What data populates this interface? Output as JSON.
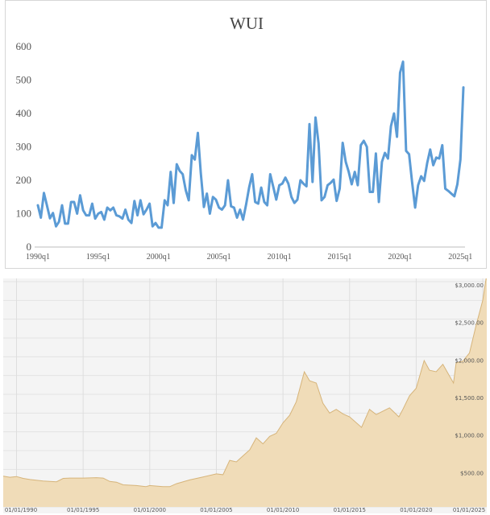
{
  "chart_data": [
    {
      "type": "line",
      "title": "WUI",
      "xlabel": "",
      "ylabel": "",
      "ylim": [
        0,
        600
      ],
      "yticks": [
        0,
        100,
        200,
        300,
        400,
        500,
        600
      ],
      "yticklabels": [
        "0",
        "100",
        "200",
        "300",
        "400",
        "500",
        "600"
      ],
      "xticklabels": [
        "1990q1",
        "1995q1",
        "2000q1",
        "2005q1",
        "2010q1",
        "2015q1",
        "2020q1",
        "2025q1"
      ],
      "grid": false,
      "color": "#5b9bd5",
      "start": "1990q1",
      "end": "2025q2",
      "values": [
        125,
        88,
        162,
        125,
        86,
        102,
        62,
        76,
        125,
        70,
        70,
        135,
        135,
        100,
        155,
        110,
        95,
        95,
        130,
        85,
        100,
        105,
        82,
        118,
        110,
        118,
        95,
        92,
        85,
        112,
        82,
        72,
        138,
        95,
        140,
        98,
        112,
        130,
        62,
        72,
        58,
        58,
        140,
        125,
        225,
        132,
        248,
        228,
        218,
        170,
        140,
        275,
        262,
        342,
        220,
        120,
        160,
        100,
        150,
        142,
        118,
        112,
        125,
        200,
        122,
        118,
        88,
        112,
        82,
        128,
        178,
        218,
        135,
        130,
        178,
        135,
        125,
        218,
        180,
        142,
        185,
        190,
        208,
        190,
        150,
        132,
        142,
        200,
        190,
        182,
        368,
        195,
        388,
        310,
        140,
        150,
        185,
        192,
        202,
        138,
        175,
        312,
        255,
        225,
        188,
        225,
        185,
        305,
        318,
        300,
        165,
        165,
        280,
        135,
        255,
        282,
        265,
        362,
        400,
        330,
        522,
        555,
        288,
        278,
        195,
        118,
        185,
        212,
        198,
        252,
        292,
        245,
        268,
        265,
        305,
        175,
        168,
        160,
        152,
        188,
        262,
        478
      ]
    },
    {
      "type": "area",
      "title": "",
      "xlabel": "",
      "ylabel": "",
      "ylim": [
        0,
        3000
      ],
      "ytick_values": [
        500,
        1000,
        1500,
        2000,
        2500,
        3000
      ],
      "yticklabels": [
        "$500.00",
        "$1,000.00",
        "$1,500.00",
        "$2,000.00",
        "$2,500.00",
        "$3,000.00"
      ],
      "xticklabels": [
        "01/01/1990",
        "01/01/1995",
        "01/01/2000",
        "01/01/2005",
        "01/01/2010",
        "01/01/2015",
        "01/01/2020",
        "01/01/2025"
      ],
      "grid": true,
      "fill_color": "#f0dcb8",
      "line_color": "#d6b47a",
      "x": [
        1989.0,
        1989.5,
        1990.0,
        1990.5,
        1991.0,
        1992.0,
        1993.0,
        1993.5,
        1994.0,
        1995.0,
        1996.0,
        1996.5,
        1997.0,
        1997.5,
        1998.0,
        1999.0,
        1999.7,
        2000.0,
        2001.0,
        2001.5,
        2002.0,
        2003.0,
        2004.0,
        2005.0,
        2005.5,
        2006.0,
        2006.5,
        2007.0,
        2007.5,
        2008.0,
        2008.5,
        2009.0,
        2009.5,
        2010.0,
        2010.5,
        2011.0,
        2011.6,
        2012.0,
        2012.5,
        2013.0,
        2013.5,
        2014.0,
        2014.5,
        2015.0,
        2015.9,
        2016.5,
        2017.0,
        2018.0,
        2018.7,
        2019.0,
        2019.5,
        2020.0,
        2020.6,
        2021.0,
        2021.5,
        2022.0,
        2022.8,
        2023.0,
        2023.5,
        2024.0,
        2024.5,
        2025.0,
        2025.3
      ],
      "values": [
        410,
        395,
        405,
        380,
        365,
        345,
        335,
        380,
        385,
        385,
        390,
        385,
        340,
        330,
        295,
        285,
        270,
        285,
        270,
        270,
        310,
        360,
        400,
        440,
        430,
        620,
        600,
        680,
        760,
        920,
        840,
        940,
        980,
        1120,
        1220,
        1400,
        1800,
        1680,
        1650,
        1380,
        1250,
        1300,
        1240,
        1200,
        1060,
        1300,
        1230,
        1320,
        1200,
        1300,
        1480,
        1580,
        1950,
        1820,
        1800,
        1900,
        1650,
        1920,
        1940,
        2050,
        2420,
        2750,
        3100
      ]
    }
  ]
}
